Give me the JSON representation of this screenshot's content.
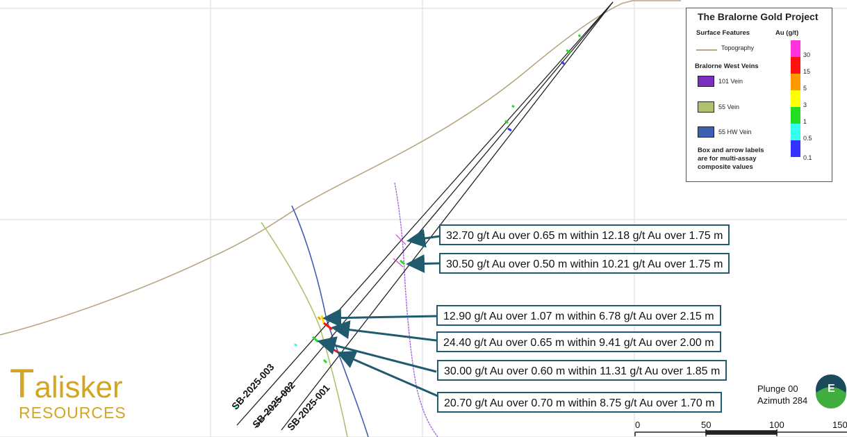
{
  "legend": {
    "title": "The Bralorne Gold Project",
    "surface_features": "Surface Features",
    "topography": "Topography",
    "veins_header": "Bralorne West Veins",
    "veins": [
      {
        "label": "101 Vein",
        "color": "#7b2fbe"
      },
      {
        "label": "55 Vein",
        "color": "#aec26e"
      },
      {
        "label": "55 HW Vein",
        "color": "#3f5fb5"
      }
    ],
    "note": [
      "Box and arrow labels",
      "are for multi-assay",
      "composite values"
    ],
    "au_header": "Au (g/t)",
    "au_ticks": [
      "30",
      "15",
      "5",
      "3",
      "1",
      "0.5",
      "0.1"
    ],
    "au_colors": [
      "#ff33dd",
      "#ff1111",
      "#ff9900",
      "#ffff00",
      "#22dd22",
      "#33ffee",
      "#3333ff"
    ]
  },
  "callouts": [
    "32.70 g/t Au over 0.65 m within 12.18 g/t Au over 1.75 m",
    "30.50 g/t Au over 0.50 m within 10.21 g/t Au over 1.75 m",
    "12.90 g/t Au over 1.07 m within 6.78 g/t Au over 2.15 m",
    "24.40 g/t Au over 0.65 m within 9.41 g/t Au over 2.00 m",
    "30.00 g/t Au over 0.60 m within 11.31 g/t Au over 1.85 m",
    "20.70 g/t Au over 0.70 m within 8.75 g/t Au over 1.70 m"
  ],
  "drill_holes": [
    "SB-2025-003",
    "SB-2025-002",
    "SB-2025-001"
  ],
  "logo": {
    "main": "alisker",
    "sub": "RESOURCES"
  },
  "view": {
    "plunge": "Plunge 00",
    "azimuth": "Azimuth 284",
    "compass_letter": "E"
  },
  "scale": [
    "0",
    "50",
    "100",
    "150"
  ],
  "colors": {
    "callout_border": "#1f5a6e",
    "logo": "#d4a520",
    "topography": "#b8a582"
  }
}
